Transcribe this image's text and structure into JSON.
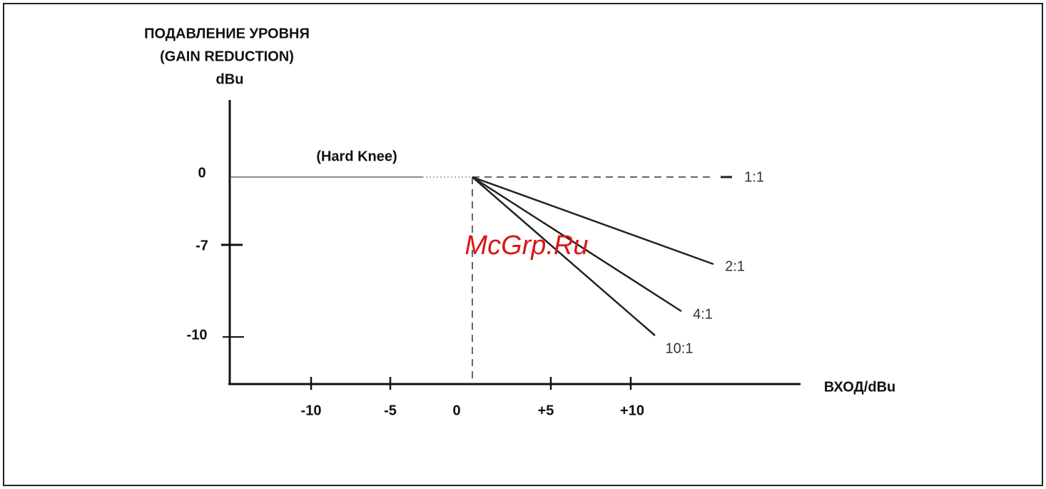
{
  "header": {
    "title_lines": [
      "ПОДАВЛЕНИЕ УРОВНЯ",
      "(GAIN REDUCTION)",
      "dBu"
    ]
  },
  "knee_label": "(Hard Knee)",
  "y_axis": {
    "tick_labels": [
      "0",
      "-7",
      "-10"
    ]
  },
  "x_axis": {
    "label": "ВХОД/dBu",
    "tick_labels": [
      "-10",
      "-5",
      "0",
      "+5",
      "+10"
    ]
  },
  "ratios": [
    "1:1",
    "2:1",
    "4:1",
    "10:1"
  ],
  "watermark": "McGrp.Ru"
}
